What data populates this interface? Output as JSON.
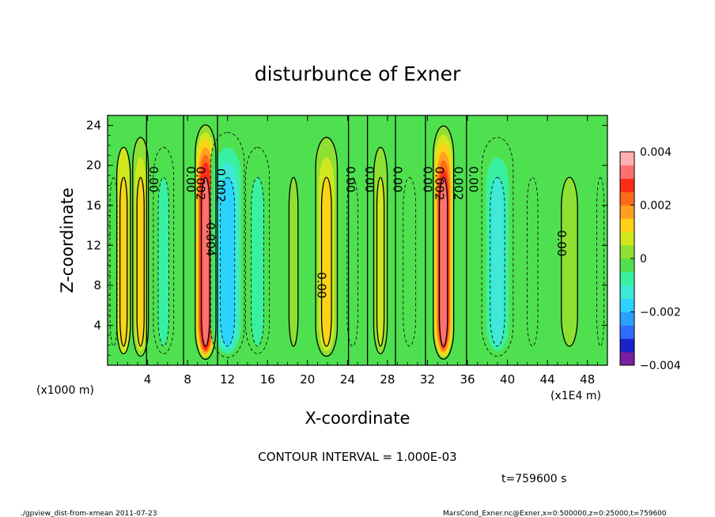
{
  "chart_data": {
    "type": "heatmap",
    "title": "disturbunce of Exner",
    "xlabel": "X-coordinate",
    "ylabel": "Z-coordinate",
    "x_unit": "(x1E4 m)",
    "z_unit": "(x1000 m)",
    "xlim": [
      0,
      50
    ],
    "ylim": [
      0,
      25
    ],
    "x_ticks": [
      4,
      8,
      12,
      16,
      20,
      24,
      28,
      32,
      36,
      40,
      44,
      48
    ],
    "y_ticks": [
      4,
      8,
      12,
      16,
      20,
      24
    ],
    "colorbar": {
      "min": -0.004,
      "max": 0.004,
      "tick_values": [
        0.004,
        0.002,
        0,
        -0.002,
        -0.004
      ],
      "tick_labels": [
        "0.004",
        "0.002",
        "0",
        "−0.002",
        "−0.004"
      ],
      "colors": [
        "#7a1fa0",
        "#1a22c8",
        "#2e6dff",
        "#2aa0ff",
        "#2ad2ff",
        "#3fe8d8",
        "#38f0a0",
        "#4fe050",
        "#8ee032",
        "#cfe81e",
        "#ffd21a",
        "#ffa020",
        "#ff6a1a",
        "#ff2a18",
        "#ff7070",
        "#ffb0b0"
      ]
    },
    "contour_interval": "CONTOUR INTERVAL = 1.000E-03",
    "contour_labels": [
      {
        "text": "0.00",
        "x": 4.2,
        "z": 18.6
      },
      {
        "text": "0.00",
        "x": 7.9,
        "z": 18.6
      },
      {
        "text": "0.002",
        "x": 8.9,
        "z": 18.2
      },
      {
        "text": "0.002",
        "x": 10.9,
        "z": 18.0
      },
      {
        "text": "0.004",
        "x": 9.9,
        "z": 12.6
      },
      {
        "text": "0.00",
        "x": 23.9,
        "z": 18.6
      },
      {
        "text": "0.00",
        "x": 25.8,
        "z": 18.6
      },
      {
        "text": "0.00",
        "x": 28.6,
        "z": 18.6
      },
      {
        "text": "0.00",
        "x": 31.6,
        "z": 18.6
      },
      {
        "text": "0.002",
        "x": 32.8,
        "z": 18.2
      },
      {
        "text": "0.002",
        "x": 34.7,
        "z": 18.2
      },
      {
        "text": "0.00",
        "x": 36.2,
        "z": 18.6
      },
      {
        "text": "0.00",
        "x": 21.0,
        "z": 8.0
      },
      {
        "text": "0.00",
        "x": 45.0,
        "z": 12.2
      }
    ],
    "columns": [
      {
        "x": 0.6,
        "w": 0.8,
        "value": -0.0003
      },
      {
        "x": 1.6,
        "w": 0.8,
        "value": 0.0011
      },
      {
        "x": 3.3,
        "w": 0.8,
        "value": 0.0012
      },
      {
        "x": 5.6,
        "w": 1.2,
        "value": -0.0009
      },
      {
        "x": 9.8,
        "w": 0.9,
        "value": 0.0034
      },
      {
        "x": 12.0,
        "w": 1.6,
        "value": -0.0017
      },
      {
        "x": 15.0,
        "w": 1.4,
        "value": -0.0009
      },
      {
        "x": 18.6,
        "w": 1.0,
        "value": 0.0003
      },
      {
        "x": 21.9,
        "w": 1.1,
        "value": 0.0013
      },
      {
        "x": 24.5,
        "w": 1.2,
        "value": -0.0002
      },
      {
        "x": 27.3,
        "w": 0.8,
        "value": 0.0009
      },
      {
        "x": 30.2,
        "w": 1.4,
        "value": -0.0002
      },
      {
        "x": 33.6,
        "w": 0.9,
        "value": 0.0033
      },
      {
        "x": 39.0,
        "w": 1.6,
        "value": -0.0015
      },
      {
        "x": 42.5,
        "w": 1.2,
        "value": -0.0004
      },
      {
        "x": 46.2,
        "w": 1.8,
        "value": 0.0004
      },
      {
        "x": 49.3,
        "w": 0.8,
        "value": -0.0005
      }
    ]
  },
  "time_label": "t=759600 s",
  "footer_left": "./gpview_dist-from-xmean  2011-07-23",
  "footer_right": "MarsCond_Exner.nc@Exner,x=0:500000,z=0:25000,t=759600"
}
